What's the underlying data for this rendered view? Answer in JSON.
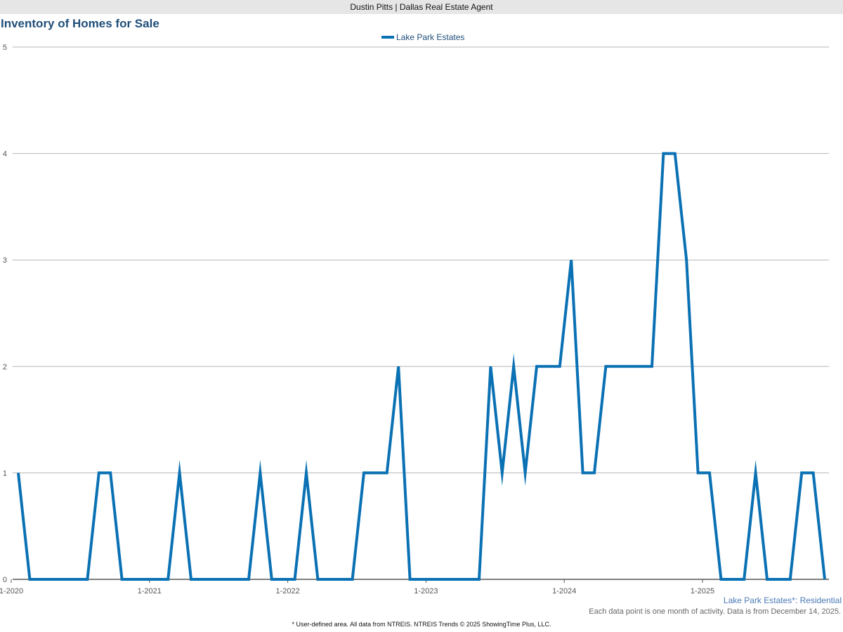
{
  "header": {
    "agent": "Dustin Pitts | Dallas Real Estate Agent"
  },
  "chart_data": {
    "type": "line",
    "title": "Inventory of Homes for Sale",
    "xlabel": "",
    "ylabel": "",
    "ylim": [
      0,
      5
    ],
    "yticks": [
      "0",
      "1",
      "2",
      "3",
      "4",
      "5"
    ],
    "xticks": [
      "1-2020",
      "1-2021",
      "1-2022",
      "1-2023",
      "1-2024",
      "1-2025"
    ],
    "start_month": "2020-01",
    "end_month": "2025-11",
    "grid": true,
    "legend_position": "top-center",
    "series": [
      {
        "name": "Lake Park Estates",
        "color": "#0a71b4",
        "values": [
          1,
          0,
          0,
          0,
          0,
          0,
          0,
          1,
          1,
          0,
          0,
          0,
          0,
          0,
          1,
          0,
          0,
          0,
          0,
          0,
          0,
          1,
          0,
          0,
          0,
          1,
          0,
          0,
          0,
          0,
          1,
          1,
          1,
          2,
          0,
          0,
          0,
          0,
          0,
          0,
          0,
          2,
          1,
          2,
          1,
          2,
          2,
          2,
          3,
          1,
          1,
          2,
          2,
          2,
          2,
          2,
          4,
          4,
          3,
          1,
          1,
          0,
          0,
          0,
          1,
          0,
          0,
          0,
          1,
          1,
          0
        ]
      }
    ]
  },
  "notes": {
    "area": "Lake Park Estates*: Residential",
    "data_note": "Each data point is one month of activity. Data is from December 14, 2025.",
    "footer": "* User-defined area. All data from NTREIS. NTREIS Trends © 2025 ShowingTime Plus, LLC."
  }
}
